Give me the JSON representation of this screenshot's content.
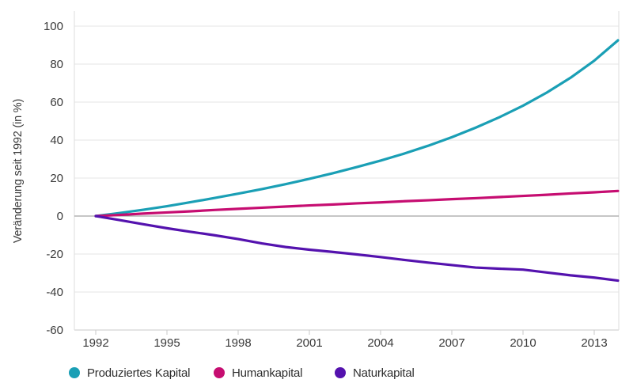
{
  "chart_data": {
    "type": "line",
    "title": "",
    "xlabel": "",
    "ylabel": "Veränderung seit 1992 (in %)",
    "x": [
      1992,
      1993,
      1994,
      1995,
      1996,
      1997,
      1998,
      1999,
      2000,
      2001,
      2002,
      2003,
      2004,
      2005,
      2006,
      2007,
      2008,
      2009,
      2010,
      2011,
      2012,
      2013,
      2014
    ],
    "series": [
      {
        "name": "Produziertes Kapital",
        "color": "#1a9fb5",
        "values": [
          0,
          1.6,
          3.3,
          5.2,
          7.3,
          9.5,
          11.8,
          14.2,
          16.8,
          19.6,
          22.6,
          25.8,
          29.2,
          32.9,
          37.0,
          41.5,
          46.5,
          52.0,
          58.1,
          65.0,
          72.8,
          81.8,
          92.5
        ]
      },
      {
        "name": "Humankapital",
        "color": "#c60d71",
        "values": [
          0,
          0.6,
          1.3,
          1.9,
          2.5,
          3.2,
          3.8,
          4.4,
          5.0,
          5.6,
          6.1,
          6.7,
          7.2,
          7.8,
          8.3,
          8.9,
          9.4,
          10.0,
          10.6,
          11.2,
          11.9,
          12.5,
          13.2
        ]
      },
      {
        "name": "Naturkapital",
        "color": "#5412ae",
        "values": [
          0,
          -2.1,
          -4.3,
          -6.4,
          -8.3,
          -10.1,
          -12.1,
          -14.4,
          -16.3,
          -17.7,
          -18.9,
          -20.2,
          -21.6,
          -23.1,
          -24.5,
          -25.8,
          -27.1,
          -27.7,
          -28.2,
          -29.7,
          -31.2,
          -32.4,
          -34.0
        ]
      }
    ],
    "ylim": [
      -60,
      100
    ],
    "y_ticks": [
      100,
      80,
      60,
      40,
      20,
      0,
      -20,
      -40,
      -60
    ],
    "x_ticks": [
      1992,
      1995,
      1998,
      2001,
      2004,
      2007,
      2010,
      2013
    ],
    "grid": true,
    "zero_line": true,
    "legend_position": "bottom"
  },
  "colors": {
    "background": "#ffffff",
    "grid_line": "#e4e4e4",
    "plot_border": "#dedede",
    "axis_line": "#c9c9c9",
    "zero_line": "#8c8c8c",
    "tick_text": "#3a3a3a",
    "axis_title_text": "#3a3a3a",
    "legend_text": "#2e2e2e"
  }
}
